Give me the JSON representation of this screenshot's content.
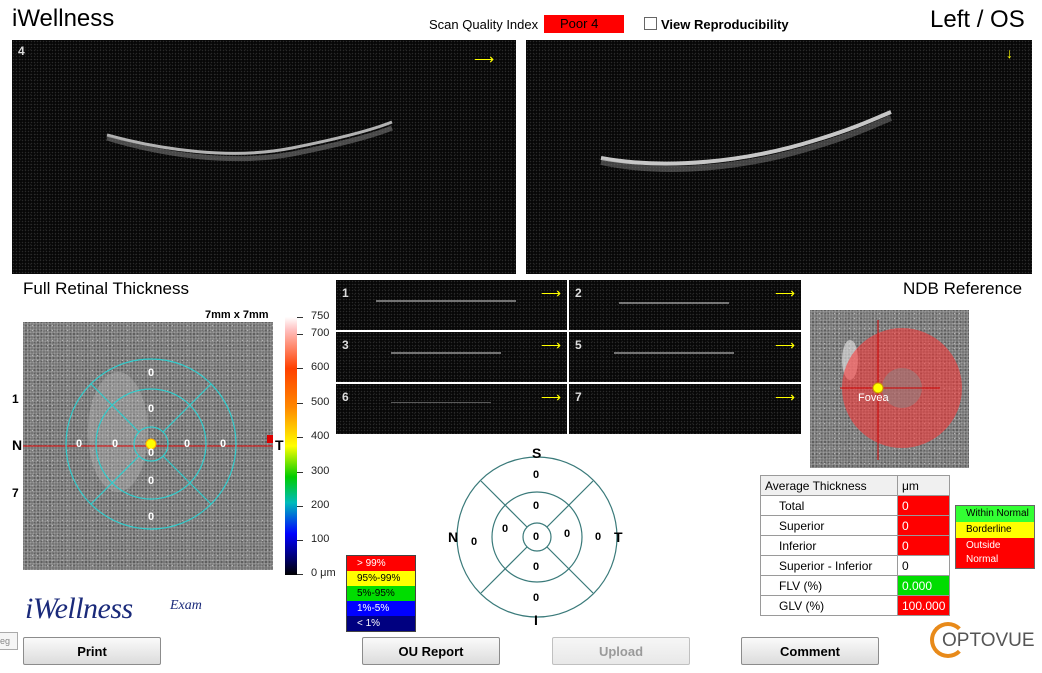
{
  "app": {
    "title": "iWellness",
    "eye": "Left / OS"
  },
  "scan_quality": {
    "label": "Scan Quality Index",
    "value": "Poor  4",
    "color": "#ff0000"
  },
  "view_repro": {
    "label": "View Reproducibility",
    "checked": false
  },
  "bscans": {
    "left_number": "4",
    "arrow_icon": "arrow-right-icon",
    "right_arrow_icon": "arrow-down-icon"
  },
  "thumbnails": [
    {
      "num": "1"
    },
    {
      "num": "2"
    },
    {
      "num": "3"
    },
    {
      "num": "5"
    },
    {
      "num": "6"
    },
    {
      "num": "7"
    }
  ],
  "frt": {
    "title": "Full Retinal Thickness",
    "size_label": "7mm x 7mm",
    "left_labels": {
      "top": "1",
      "mid": "N",
      "bottom": "7",
      "right": "T"
    },
    "sector_values": {
      "outer_top": "0",
      "inner_top": "0",
      "center": "0",
      "inner_bottom": "0",
      "outer_bottom": "0",
      "outer_left": "0",
      "inner_left": "0",
      "inner_right": "0",
      "outer_right": "0"
    }
  },
  "color_scale": {
    "ticks": [
      "750",
      "700",
      "600",
      "500",
      "400",
      "300",
      "200",
      "100",
      "0 μm"
    ]
  },
  "percentile_legend": [
    {
      "label": "> 99%",
      "color": "#ff0000",
      "text": "#ffffff"
    },
    {
      "label": "95%-99%",
      "color": "#ffff00",
      "text": "#000000"
    },
    {
      "label": "5%-95%",
      "color": "#00dd00",
      "text": "#000000"
    },
    {
      "label": "1%-5%",
      "color": "#0000ff",
      "text": "#ffffff"
    },
    {
      "label": "< 1%",
      "color": "#000080",
      "text": "#ffffff"
    }
  ],
  "sector_chart": {
    "labels": {
      "top": "S",
      "bottom": "I",
      "left": "N",
      "right": "T"
    },
    "values": {
      "outer_top": "0",
      "inner_top": "0",
      "center": "0",
      "inner_bottom": "0",
      "outer_bottom": "0",
      "outer_left": "0",
      "inner_left": "0",
      "inner_right": "0",
      "outer_right": "0"
    }
  },
  "ndb": {
    "title": "NDB Reference",
    "fovea_label": "Fovea"
  },
  "avg_table": {
    "header": [
      "Average Thickness",
      "μm"
    ],
    "rows": [
      {
        "label": "Total",
        "value": "0",
        "bg": "#ff0000"
      },
      {
        "label": "Superior",
        "value": "0",
        "bg": "#ff0000"
      },
      {
        "label": "Inferior",
        "value": "0",
        "bg": "#ff0000"
      },
      {
        "label": "Superior - Inferior",
        "value": "0",
        "bg": "#ffffff"
      },
      {
        "label": "FLV (%)",
        "value": "0.000",
        "bg": "#00dd00"
      },
      {
        "label": "GLV (%)",
        "value": "100.000",
        "bg": "#ff0000"
      }
    ]
  },
  "status_legend": [
    {
      "label": "Within Normal",
      "color": "#33ff33"
    },
    {
      "label": "Borderline",
      "color": "#ffff00"
    },
    {
      "label": "Outside Normal",
      "color": "#ff0000"
    }
  ],
  "logo": {
    "brand": "iWellness",
    "sub": "Exam",
    "company": "OPTOVUE"
  },
  "buttons": {
    "print": "Print",
    "ou_report": "OU Report",
    "upload": "Upload",
    "comment": "Comment"
  },
  "corner_tab": "eg"
}
